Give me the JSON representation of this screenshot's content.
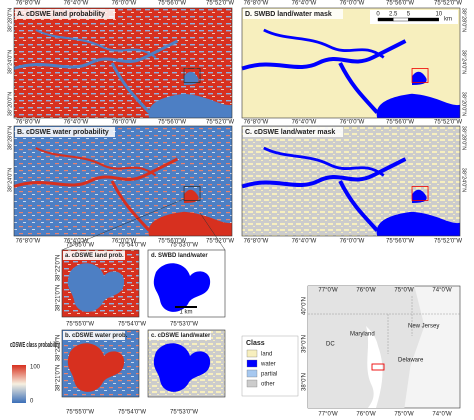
{
  "main_map": {
    "lon_labels": [
      "76°8'0\"W",
      "76°4'0\"W",
      "76°0'0\"W",
      "75°56'0\"W",
      "75°52'0\"W"
    ],
    "lat_labels": [
      "38°28'0\"N",
      "38°24'0\"N",
      "38°20'0\"N"
    ],
    "panels": [
      "A. cDSWE land probability",
      "B. cDSWE water probability",
      "D. SWBD land/water mask",
      "C. cDSWE land/water mask"
    ]
  },
  "scale_bar": {
    "labels": [
      "0",
      "2.5",
      "5",
      "10"
    ],
    "unit": "km"
  },
  "zoom": {
    "lon_labels": [
      "75°55'0\"W",
      "75°54'0\"W",
      "75°53'0\"W"
    ],
    "lat_labels": [
      "38°22'0\"N",
      "38°21'0\"N"
    ],
    "panels": [
      "a. cDSWE land prob.",
      "d. SWBD land/water",
      "b. cDSWE water prob.",
      "c. cDSWE land/water"
    ],
    "scale": "1 km"
  },
  "probability_legend": {
    "title": "cDSWE class probability",
    "max": "100",
    "min": "0"
  },
  "class_legend": {
    "title": "Class",
    "items": [
      "land",
      "water",
      "partial",
      "other"
    ]
  },
  "inset": {
    "lon_labels": [
      "77°0'W",
      "76°0'W",
      "75°0'W",
      "74°0'W"
    ],
    "lat_labels": [
      "40°0'N",
      "39°0'N",
      "38°0'N"
    ],
    "places": [
      "New Jersey",
      "Maryland",
      "Delaware",
      "DC"
    ]
  }
}
